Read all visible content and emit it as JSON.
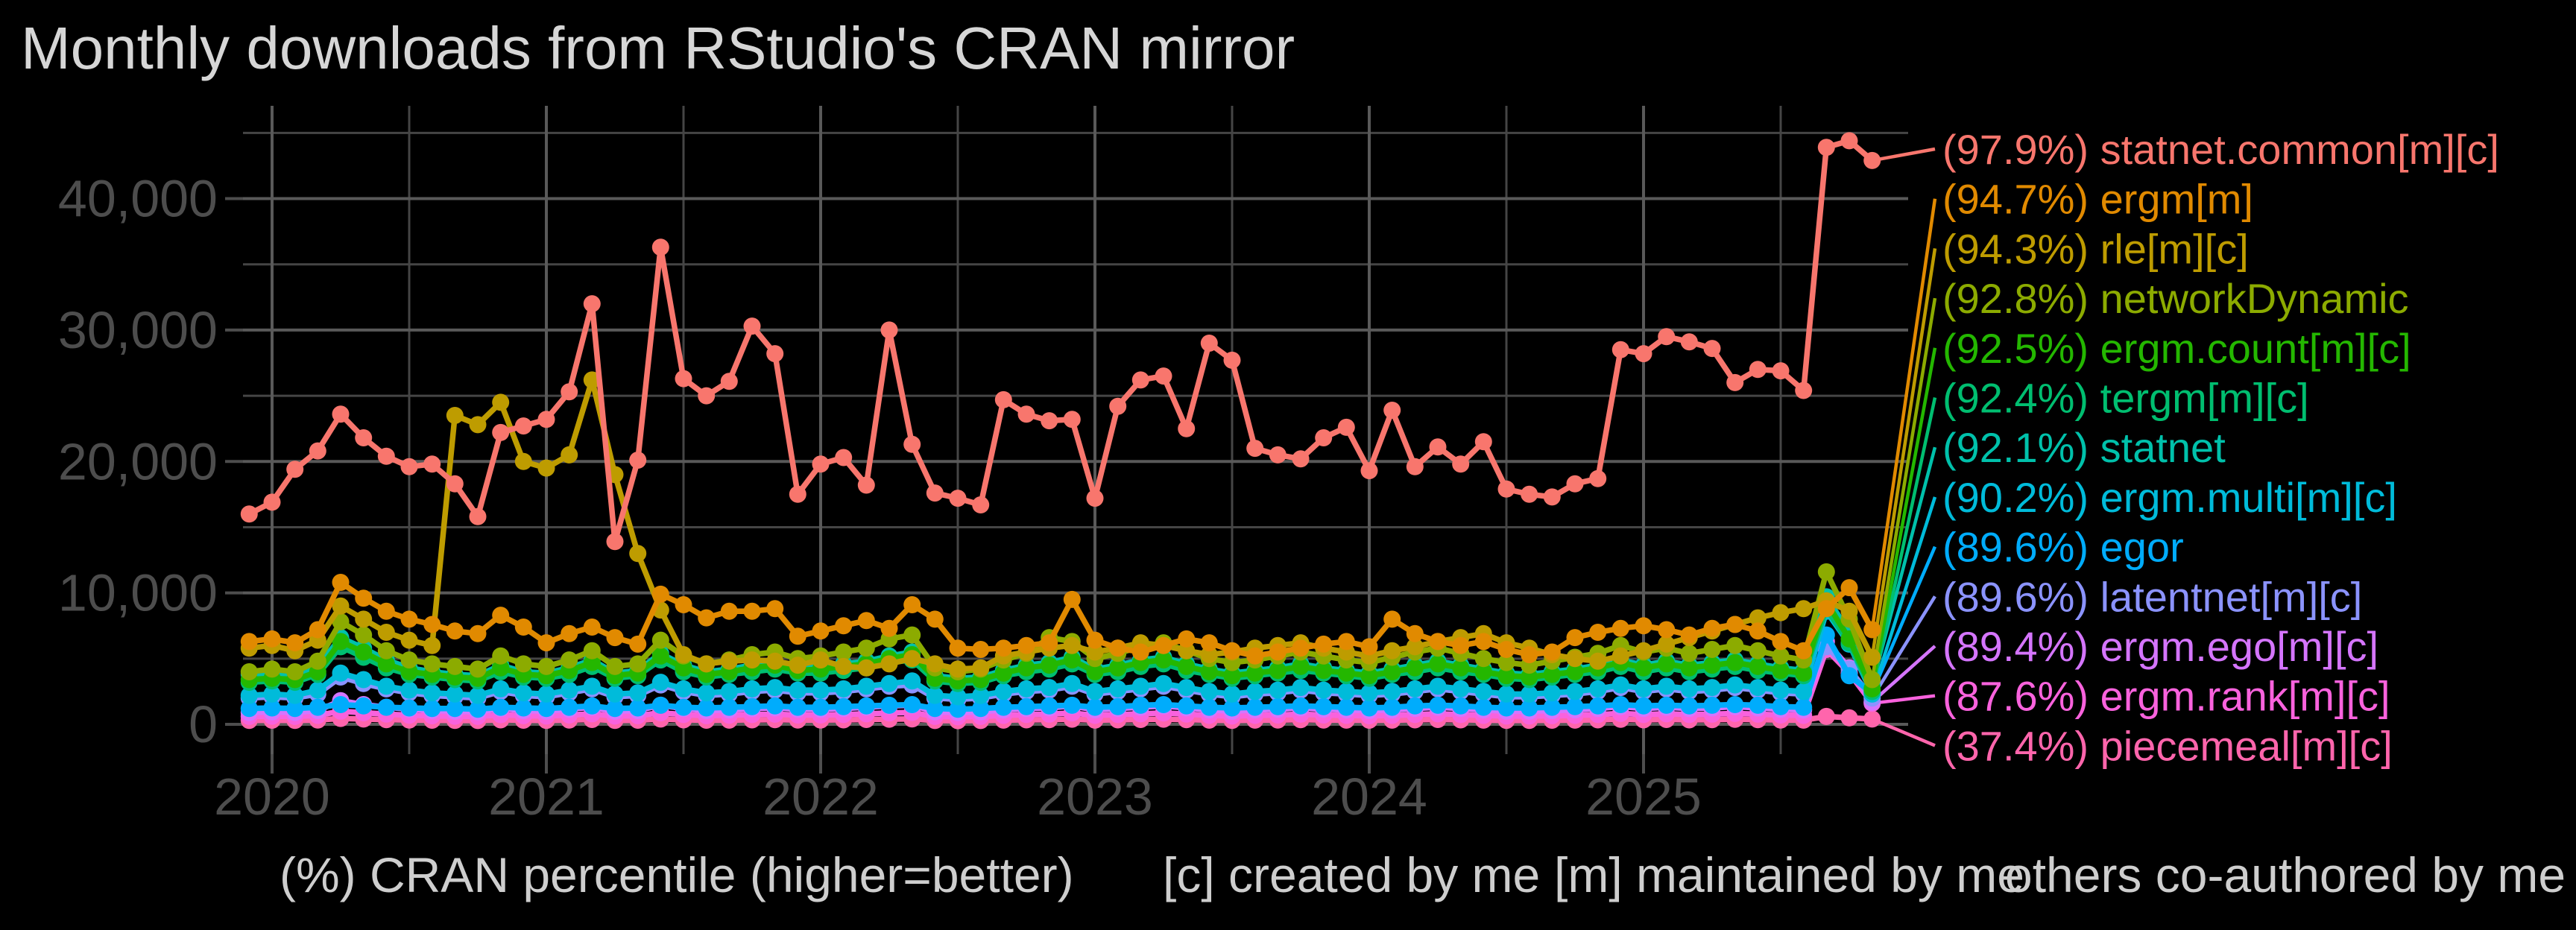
{
  "title": "Monthly downloads from RStudio's CRAN mirror",
  "caption": {
    "segments": [
      "(%) CRAN percentile (higher=better)",
      "[c] created by me",
      "[m] maintained by me",
      "others co-authored by me"
    ]
  },
  "colors": {
    "background": "#000000",
    "grid_major": "#595959",
    "grid_minor": "#454545",
    "axis_tick": "#4d4d4d",
    "axis_text": "#4d4d4d",
    "title_text": "#d6d6d6",
    "caption_text": "#cecece"
  },
  "chart_data": {
    "type": "line",
    "title": "Monthly downloads from RStudio's CRAN mirror",
    "unit": "downloads per month",
    "x_start": "2019-12",
    "x_frequency": "monthly",
    "n_points": 72,
    "x_tick_labels": [
      "2020",
      "2021",
      "2022",
      "2023",
      "2024",
      "2025"
    ],
    "y_tick_labels": [
      "0",
      "10,000",
      "20,000",
      "30,000",
      "40,000"
    ],
    "y_tick_values": [
      0,
      10000,
      20000,
      30000,
      40000
    ],
    "y_minor_values": [
      5000,
      15000,
      25000,
      35000,
      45000
    ],
    "ylim": [
      0,
      47000
    ],
    "grid": "major+minor",
    "legend_position": "right",
    "marker": "point",
    "series": [
      {
        "name": "statnet.common",
        "legend_label": "(97.9%) statnet.common[m][c]",
        "percentile": "97.9%",
        "color": "#F8766D",
        "values": [
          16000,
          16900,
          19400,
          20800,
          23600,
          21800,
          20400,
          19600,
          19800,
          18300,
          15800,
          22200,
          22700,
          23200,
          25300,
          32000,
          13900,
          20100,
          36300,
          26300,
          25000,
          26100,
          30300,
          28200,
          17500,
          19800,
          20300,
          18200,
          30000,
          21300,
          17600,
          17200,
          16700,
          24700,
          23600,
          23100,
          23200,
          17200,
          24200,
          26200,
          26500,
          22500,
          29000,
          27700,
          21000,
          20500,
          20200,
          21800,
          22600,
          19300,
          23900,
          19600,
          21100,
          19800,
          21500,
          17900,
          17500,
          17300,
          18300,
          18700,
          28500,
          28200,
          29500,
          29100,
          28600,
          26000,
          27000,
          26900,
          25400,
          43900,
          44400,
          42900
        ]
      },
      {
        "name": "ergm",
        "legend_label": "(94.7%) ergm[m]",
        "percentile": "94.7%",
        "color": "#E18A00",
        "values": [
          6300,
          6500,
          6200,
          7200,
          10800,
          9600,
          8600,
          8000,
          7600,
          7100,
          6900,
          8300,
          7400,
          6200,
          6900,
          7400,
          6600,
          6100,
          9900,
          9100,
          8100,
          8600,
          8600,
          8800,
          6700,
          7100,
          7500,
          7900,
          7300,
          9100,
          8000,
          5800,
          5700,
          5800,
          6000,
          6200,
          9500,
          6400,
          5800,
          5500,
          6000,
          6500,
          6200,
          5600,
          5200,
          5500,
          5800,
          6100,
          6300,
          5900,
          8000,
          6900,
          6300,
          6000,
          6300,
          5700,
          5300,
          5500,
          6600,
          7000,
          7300,
          7500,
          7200,
          6800,
          7300,
          7600,
          7100,
          6300,
          5600,
          8800,
          10400,
          7200
        ]
      },
      {
        "name": "rle",
        "legend_label": "(94.3%) rle[m][c]",
        "percentile": "94.3%",
        "color": "#BE9C00",
        "values": [
          5800,
          6000,
          5600,
          6400,
          9000,
          8000,
          7000,
          6400,
          6000,
          23500,
          22800,
          24500,
          20000,
          19500,
          20500,
          26200,
          19000,
          13000,
          8700,
          5300,
          4600,
          4800,
          4900,
          4800,
          4500,
          4900,
          4400,
          4300,
          4600,
          5000,
          4600,
          4200,
          4300,
          5200,
          5500,
          5800,
          6000,
          5500,
          5800,
          6200,
          6000,
          5600,
          5300,
          5500,
          5800,
          6000,
          6200,
          5800,
          5500,
          5200,
          5600,
          5900,
          6300,
          6600,
          6900,
          6200,
          5800,
          5300,
          5000,
          4800,
          5200,
          5600,
          6100,
          6600,
          7100,
          7600,
          8100,
          8500,
          8800,
          9400,
          8600,
          5100
        ]
      },
      {
        "name": "networkDynamic",
        "legend_label": "(92.8%) networkDynamic",
        "percentile": "92.8%",
        "color": "#8CAB00",
        "values": [
          4000,
          4200,
          4000,
          4800,
          7800,
          6800,
          5600,
          4900,
          4600,
          4400,
          4200,
          5200,
          4600,
          4400,
          4900,
          5600,
          4400,
          4600,
          6400,
          5200,
          4600,
          4900,
          5300,
          5500,
          5000,
          5200,
          5500,
          5800,
          6500,
          6800,
          4300,
          4000,
          4200,
          4900,
          5400,
          6600,
          6300,
          5000,
          5400,
          5900,
          6200,
          5600,
          5000,
          4700,
          4900,
          5200,
          5500,
          5200,
          4900,
          4700,
          5100,
          5500,
          5800,
          5400,
          5000,
          4700,
          4500,
          4800,
          5100,
          5400,
          6000,
          5500,
          5800,
          5400,
          5700,
          6000,
          5600,
          5200,
          4900,
          11600,
          8000,
          3400
        ]
      },
      {
        "name": "ergm.count",
        "legend_label": "(92.5%) ergm.count[m][c]",
        "percentile": "92.5%",
        "color": "#24B700",
        "values": [
          3400,
          3500,
          3400,
          4000,
          6300,
          5500,
          4600,
          4000,
          3800,
          3600,
          3500,
          4300,
          3800,
          3700,
          4100,
          4700,
          3700,
          3900,
          5200,
          4300,
          3800,
          4000,
          4300,
          4500,
          4100,
          4200,
          4400,
          4600,
          5000,
          5300,
          3500,
          3300,
          3400,
          3900,
          4300,
          4500,
          4900,
          4000,
          4300,
          4700,
          4900,
          4400,
          4000,
          3700,
          3900,
          4100,
          4400,
          4100,
          3900,
          3700,
          4000,
          4300,
          4600,
          4300,
          4000,
          3700,
          3600,
          3800,
          4000,
          4300,
          4700,
          4300,
          4600,
          4300,
          4500,
          4700,
          4400,
          4100,
          3900,
          9300,
          6500,
          2700
        ]
      },
      {
        "name": "tergm",
        "legend_label": "(92.4%) tergm[m][c]",
        "percentile": "92.4%",
        "color": "#00BE70",
        "values": [
          3200,
          3300,
          3200,
          3800,
          5900,
          5100,
          4300,
          3800,
          3600,
          3400,
          3300,
          4000,
          3600,
          3500,
          3800,
          4400,
          3500,
          3700,
          4900,
          4000,
          3600,
          3800,
          4000,
          4200,
          3900,
          3900,
          4100,
          4300,
          4700,
          4900,
          3300,
          3100,
          3200,
          3700,
          4000,
          4200,
          4600,
          3800,
          4000,
          4400,
          4600,
          4100,
          3800,
          3500,
          3700,
          3900,
          4100,
          3900,
          3700,
          3500,
          3800,
          4000,
          4300,
          4000,
          3800,
          3500,
          3400,
          3600,
          3800,
          4000,
          4400,
          4000,
          4300,
          4000,
          4200,
          4400,
          4100,
          3900,
          3700,
          8800,
          6200,
          2500
        ]
      },
      {
        "name": "statnet",
        "legend_label": "(92.1%) statnet",
        "percentile": "92.1%",
        "color": "#00C1AB",
        "values": [
          3800,
          3900,
          3800,
          4400,
          6600,
          5800,
          4900,
          4300,
          4000,
          3800,
          3700,
          4500,
          4000,
          3900,
          4300,
          4900,
          3900,
          4100,
          5400,
          4500,
          4000,
          4200,
          4500,
          4700,
          4300,
          4400,
          4600,
          4800,
          5200,
          5500,
          3700,
          3500,
          3600,
          4100,
          4500,
          4700,
          5100,
          4200,
          4500,
          4900,
          5100,
          4600,
          4200,
          3900,
          4100,
          4300,
          4600,
          4300,
          4100,
          3900,
          4200,
          4500,
          4800,
          4500,
          4200,
          3900,
          3800,
          4000,
          4200,
          4500,
          4900,
          4500,
          4800,
          4500,
          4700,
          4900,
          4600,
          4300,
          4100,
          9700,
          7000,
          2900
        ]
      },
      {
        "name": "ergm.multi",
        "legend_label": "(90.2%) ergm.multi[m][c]",
        "percentile": "90.2%",
        "color": "#00BBDA",
        "values": [
          2200,
          2300,
          2200,
          2600,
          3900,
          3400,
          2900,
          2600,
          2400,
          2300,
          2200,
          2700,
          2400,
          2300,
          2600,
          2900,
          2300,
          2400,
          3200,
          2700,
          2400,
          2500,
          2700,
          2800,
          2600,
          2600,
          2700,
          2900,
          3100,
          3300,
          2200,
          2100,
          2200,
          2500,
          2700,
          2800,
          3100,
          2500,
          2700,
          2900,
          3100,
          2800,
          2500,
          2300,
          2500,
          2600,
          2800,
          2600,
          2500,
          2400,
          2500,
          2700,
          2900,
          2700,
          2500,
          2300,
          2300,
          2400,
          2500,
          2700,
          3000,
          2700,
          2900,
          2700,
          2800,
          3000,
          2800,
          2600,
          2500,
          8600,
          6100,
          2300
        ]
      },
      {
        "name": "egor",
        "legend_label": "(89.6%) egor",
        "percentile": "89.6%",
        "color": "#00ACFC",
        "values": [
          1200,
          1250,
          1200,
          1300,
          1500,
          1400,
          1300,
          1250,
          1200,
          1200,
          1150,
          1300,
          1250,
          1200,
          1300,
          1400,
          1200,
          1250,
          1450,
          1300,
          1250,
          1300,
          1350,
          1400,
          1300,
          1300,
          1350,
          1400,
          1450,
          1500,
          1200,
          1150,
          1200,
          1300,
          1350,
          1400,
          1450,
          1300,
          1350,
          1450,
          1500,
          1400,
          1300,
          1250,
          1300,
          1350,
          1400,
          1350,
          1300,
          1250,
          1300,
          1400,
          1450,
          1400,
          1300,
          1250,
          1250,
          1300,
          1350,
          1400,
          1500,
          1400,
          1450,
          1400,
          1450,
          1500,
          1450,
          1350,
          1300,
          6800,
          3700,
          2400
        ]
      },
      {
        "name": "latentnet",
        "legend_label": "(89.6%) latentnet[m][c]",
        "percentile": "89.6%",
        "color": "#8B93FF",
        "values": [
          2000,
          2100,
          2000,
          2300,
          3600,
          3100,
          2700,
          2400,
          2200,
          2100,
          2000,
          2500,
          2200,
          2100,
          2400,
          2700,
          2100,
          2200,
          3000,
          2500,
          2200,
          2300,
          2500,
          2600,
          2400,
          2400,
          2500,
          2700,
          2900,
          3000,
          2000,
          1900,
          2000,
          2300,
          2500,
          2600,
          2900,
          2300,
          2500,
          2700,
          2900,
          2600,
          2300,
          2100,
          2300,
          2400,
          2600,
          2400,
          2300,
          2200,
          2300,
          2500,
          2700,
          2500,
          2300,
          2100,
          2100,
          2200,
          2300,
          2500,
          2800,
          2500,
          2700,
          2500,
          2600,
          2800,
          2600,
          2400,
          2300,
          5900,
          4200,
          2000
        ]
      },
      {
        "name": "ergm.ego",
        "legend_label": "(89.4%) ergm.ego[m][c]",
        "percentile": "89.4%",
        "color": "#D575FE",
        "values": [
          900,
          950,
          900,
          1050,
          1800,
          1500,
          1300,
          1150,
          1050,
          1000,
          950,
          1200,
          1050,
          1000,
          1150,
          1300,
          1000,
          1050,
          1450,
          1200,
          1050,
          1100,
          1200,
          1250,
          1150,
          1150,
          1200,
          1300,
          1400,
          1450,
          950,
          900,
          950,
          1100,
          1200,
          1250,
          1400,
          1100,
          1200,
          1300,
          1400,
          1250,
          1100,
          1000,
          1100,
          1150,
          1250,
          1150,
          1100,
          1050,
          1100,
          1200,
          1300,
          1200,
          1100,
          1000,
          1000,
          1050,
          1100,
          1200,
          1350,
          1200,
          1300,
          1200,
          1250,
          1350,
          1250,
          1150,
          1100,
          6300,
          4300,
          1700
        ]
      },
      {
        "name": "ergm.rank",
        "legend_label": "(87.6%) ergm.rank[m][c]",
        "percentile": "87.6%",
        "color": "#F962DD",
        "values": [
          600,
          620,
          600,
          680,
          1000,
          880,
          780,
          700,
          650,
          620,
          600,
          730,
          660,
          630,
          710,
          800,
          630,
          660,
          880,
          740,
          660,
          690,
          740,
          770,
          710,
          710,
          740,
          800,
          860,
          900,
          600,
          570,
          600,
          680,
          740,
          770,
          860,
          680,
          740,
          800,
          860,
          780,
          680,
          630,
          680,
          710,
          770,
          710,
          680,
          650,
          680,
          740,
          800,
          740,
          680,
          630,
          630,
          660,
          680,
          740,
          830,
          740,
          800,
          740,
          770,
          830,
          770,
          710,
          680,
          5700,
          3900,
          1600
        ]
      },
      {
        "name": "piecemeal",
        "legend_label": "(37.4%) piecemeal[m][c]",
        "percentile": "37.4%",
        "color": "#FF65AC",
        "values": [
          300,
          310,
          300,
          330,
          450,
          400,
          360,
          330,
          310,
          300,
          290,
          340,
          310,
          300,
          330,
          370,
          300,
          310,
          400,
          340,
          310,
          320,
          340,
          350,
          330,
          330,
          340,
          370,
          390,
          410,
          290,
          280,
          290,
          320,
          340,
          350,
          390,
          320,
          340,
          370,
          390,
          360,
          320,
          300,
          320,
          330,
          350,
          330,
          320,
          310,
          320,
          340,
          370,
          340,
          320,
          300,
          300,
          310,
          320,
          340,
          380,
          340,
          370,
          340,
          350,
          380,
          350,
          330,
          320,
          600,
          500,
          400
        ]
      }
    ]
  }
}
